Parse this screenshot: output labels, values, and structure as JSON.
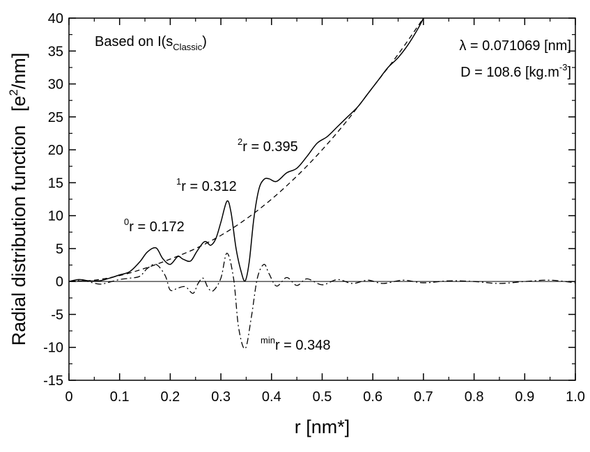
{
  "chart_data": {
    "type": "line",
    "title": "",
    "xlabel": "r [nm*]",
    "ylabel": "Radial distribution function",
    "ylabel_unit_prefix": "[e",
    "ylabel_unit_sup": "2",
    "ylabel_unit_suffix": "/nm]",
    "xlim": [
      0,
      1.0
    ],
    "ylim": [
      -15,
      40
    ],
    "x_ticks": [
      0,
      0.1,
      0.2,
      0.3,
      0.4,
      0.5,
      0.6,
      0.7,
      0.8,
      0.9,
      1.0
    ],
    "x_tick_labels": [
      "0",
      "0.1",
      "0.2",
      "0.3",
      "0.4",
      "0.5",
      "0.6",
      "0.7",
      "0.8",
      "0.9",
      "1.0"
    ],
    "y_ticks": [
      -15,
      -10,
      -5,
      0,
      5,
      10,
      15,
      20,
      25,
      30,
      35,
      40
    ],
    "y_tick_labels": [
      "-15",
      "-10",
      "-5",
      "0",
      "5",
      "10",
      "15",
      "20",
      "25",
      "30",
      "35",
      "40"
    ],
    "grid": false,
    "legend": "none",
    "series": [
      {
        "style": "solid",
        "x": [
          0,
          0.02,
          0.04,
          0.06,
          0.08,
          0.1,
          0.12,
          0.14,
          0.155,
          0.172,
          0.185,
          0.2,
          0.215,
          0.225,
          0.24,
          0.252,
          0.265,
          0.272,
          0.28,
          0.29,
          0.3,
          0.312,
          0.32,
          0.33,
          0.34,
          0.348,
          0.356,
          0.365,
          0.375,
          0.385,
          0.395,
          0.41,
          0.43,
          0.45,
          0.47,
          0.49,
          0.51,
          0.53,
          0.55,
          0.57,
          0.59,
          0.61,
          0.63,
          0.65,
          0.67,
          0.69,
          0.7
        ],
        "y": [
          0,
          0.3,
          0.1,
          0.1,
          0.5,
          1.0,
          1.5,
          3.0,
          4.5,
          5.1,
          3.5,
          2.6,
          3.8,
          3.4,
          3.1,
          4.5,
          5.9,
          6.0,
          5.5,
          6.5,
          9.0,
          12.2,
          10.5,
          5.0,
          1.5,
          0.1,
          3.0,
          9.5,
          14.0,
          15.5,
          15.6,
          15.2,
          16.5,
          17.2,
          19.0,
          21.0,
          22.0,
          23.5,
          25.0,
          26.5,
          28.5,
          30.5,
          32.5,
          34.0,
          36.0,
          38.5,
          40.0
        ]
      },
      {
        "style": "dashed",
        "x": [
          0,
          0.05,
          0.1,
          0.15,
          0.2,
          0.25,
          0.3,
          0.35,
          0.4,
          0.45,
          0.5,
          0.55,
          0.6,
          0.65,
          0.7
        ],
        "y": [
          0,
          0.2,
          0.9,
          2.0,
          3.4,
          5.0,
          7.0,
          9.5,
          12.5,
          16.0,
          20.0,
          24.5,
          29.5,
          34.5,
          40.0
        ]
      },
      {
        "style": "dashdot",
        "x": [
          0,
          0.03,
          0.06,
          0.08,
          0.1,
          0.12,
          0.14,
          0.155,
          0.172,
          0.19,
          0.2,
          0.215,
          0.23,
          0.245,
          0.255,
          0.265,
          0.275,
          0.285,
          0.3,
          0.312,
          0.325,
          0.335,
          0.348,
          0.36,
          0.372,
          0.385,
          0.395,
          0.41,
          0.43,
          0.45,
          0.47,
          0.5,
          0.53,
          0.56,
          0.59,
          0.62,
          0.66,
          0.7,
          0.75,
          0.8,
          0.85,
          0.9,
          0.95,
          1.0
        ],
        "y": [
          0,
          0.1,
          -0.4,
          -0.1,
          0.3,
          0.5,
          0.8,
          2.0,
          2.6,
          0.9,
          -1.3,
          -1.0,
          -0.8,
          -1.8,
          -0.3,
          0.5,
          -1.0,
          -1.4,
          0.5,
          4.3,
          0.5,
          -7.0,
          -10.2,
          -5.5,
          0.5,
          2.6,
          1.2,
          -0.7,
          0.6,
          -0.6,
          0.4,
          -0.5,
          0.3,
          -0.3,
          0.2,
          -0.3,
          0.2,
          -0.2,
          0.1,
          0.0,
          -0.3,
          0.0,
          0.2,
          -0.2
        ]
      },
      {
        "style": "solid-thin",
        "x": [
          0,
          1.0
        ],
        "y": [
          0,
          0
        ]
      }
    ],
    "annotations": [
      {
        "id": "based-on",
        "text_prefix": "Based on I(s",
        "text_sub": "Classic",
        "text_suffix": ")"
      },
      {
        "id": "lambda",
        "text": "λ = 0.071069 [nm]"
      },
      {
        "id": "density",
        "text_prefix": "D = 108.6 [kg.m",
        "text_sup": "-3",
        "text_suffix": "]"
      },
      {
        "id": "peak0",
        "sup": "0",
        "text": "r = 0.172"
      },
      {
        "id": "peak1",
        "sup": "1",
        "text": "r = 0.312"
      },
      {
        "id": "peak2",
        "sup": "2",
        "text": "r = 0.395"
      },
      {
        "id": "min",
        "sup": "min",
        "text": "r = 0.348"
      }
    ]
  }
}
